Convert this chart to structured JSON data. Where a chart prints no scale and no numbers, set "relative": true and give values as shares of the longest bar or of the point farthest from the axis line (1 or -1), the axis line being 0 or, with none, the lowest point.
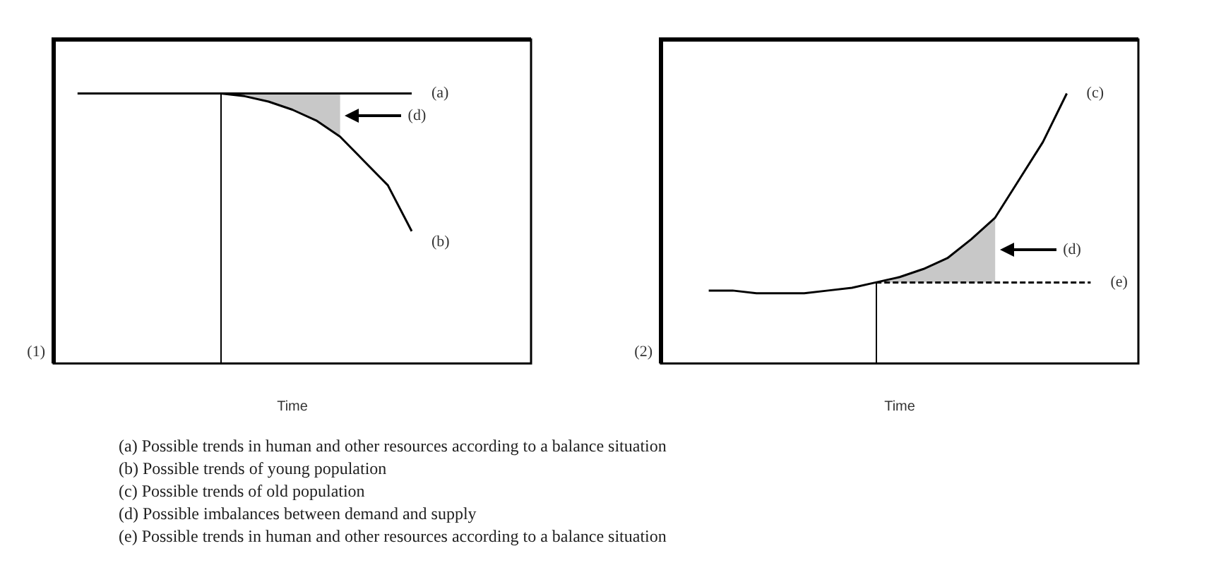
{
  "chart_data": [
    {
      "type": "line",
      "xlabel": "Time",
      "relative": true,
      "categories": [
        null,
        null,
        null,
        null,
        null,
        null,
        null,
        null,
        null,
        null,
        null,
        null,
        null,
        null,
        null,
        null,
        null,
        null,
        null,
        null,
        null
      ],
      "grid": false,
      "legend": false,
      "marker": "none",
      "annotations": [
        "(1)",
        "(d)",
        "(a) Possible trends in human and other resources according to a balance situation",
        "(b) Possible trends of young population",
        "(c) Possible trends of old population",
        "(d) Possible imbalances between demand and supply",
        "(e) Possible trends in human and other resources according to a balance situation"
      ],
      "series": [
        {
          "name": "(a)",
          "color": "#000000",
          "values": [
            null,
            1,
            1,
            1,
            1,
            1,
            1,
            1,
            1,
            1,
            1,
            1,
            1,
            1,
            1,
            1,
            null,
            null,
            null,
            null,
            null
          ]
        },
        {
          "name": "(b)",
          "color": "#000000",
          "values": [
            null,
            null,
            null,
            null,
            null,
            null,
            null,
            1,
            0.99,
            0.97,
            0.94,
            0.9,
            0.84,
            0.75,
            0.66,
            0.49,
            null,
            null,
            null,
            null,
            null
          ],
          "lower": [
            null,
            null,
            null,
            null,
            null,
            null,
            null,
            1,
            0.99,
            0.97,
            0.94,
            0.9,
            0.84,
            null,
            null,
            null,
            null,
            null,
            null,
            null,
            null
          ],
          "upper": [
            null,
            null,
            null,
            null,
            null,
            null,
            null,
            1,
            1,
            1,
            1,
            1,
            1,
            null,
            null,
            null,
            null,
            null,
            null,
            null,
            null
          ]
        }
      ]
    },
    {
      "type": "line",
      "xlabel": "Time",
      "relative": true,
      "categories": [
        null,
        null,
        null,
        null,
        null,
        null,
        null,
        null,
        null,
        null,
        null,
        null,
        null,
        null,
        null,
        null,
        null,
        null,
        null,
        null,
        null
      ],
      "grid": false,
      "legend": false,
      "marker": "none",
      "annotations": [
        "(2)",
        "(d)"
      ],
      "series": [
        {
          "name": "(c)",
          "color": "#000000",
          "values": [
            null,
            null,
            0.27,
            0.27,
            0.26,
            0.26,
            0.26,
            0.27,
            0.28,
            0.3,
            0.32,
            0.35,
            0.39,
            0.46,
            0.54,
            0.68,
            0.82,
            1,
            null,
            null,
            null
          ],
          "lower": [
            null,
            null,
            null,
            null,
            null,
            null,
            null,
            null,
            null,
            0.3,
            0.3,
            0.3,
            0.3,
            0.3,
            0.3,
            null,
            null,
            null,
            null,
            null,
            null
          ],
          "upper": [
            null,
            null,
            null,
            null,
            null,
            null,
            null,
            null,
            null,
            0.3,
            0.32,
            0.35,
            0.39,
            0.46,
            0.54,
            null,
            null,
            null,
            null,
            null,
            null
          ]
        },
        {
          "name": "(e)",
          "color": "#000000",
          "line_style": "dashed",
          "values": [
            null,
            null,
            null,
            null,
            null,
            null,
            null,
            null,
            null,
            0.3,
            0.3,
            0.3,
            0.3,
            0.3,
            0.3,
            0.3,
            0.3,
            0.3,
            0.3,
            null,
            null
          ]
        }
      ]
    }
  ]
}
